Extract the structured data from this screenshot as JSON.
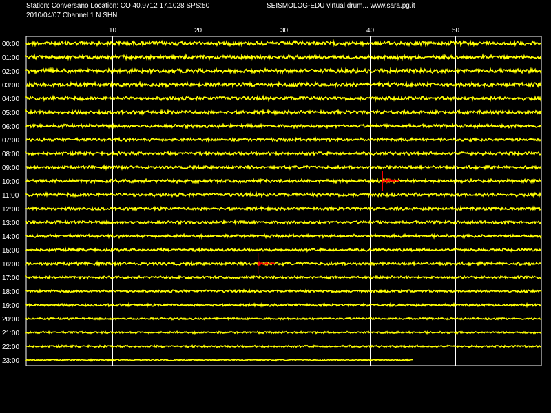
{
  "header": {
    "station_line": "Station: Conversano Location: CO 40.9712 17.1028 SPS:50",
    "date_line": "2010/04/07  Channel 1 N SHN",
    "title": "SEISMOLOG-EDU virtual drum... www.sara.pg.it"
  },
  "colors": {
    "background": "#000000",
    "trace": "#ffff00",
    "grid": "#ffffff",
    "event_marker": "#ff0000"
  },
  "chart_data": {
    "type": "line",
    "title": "",
    "xlabel": "",
    "ylabel": "",
    "x_unit": "minutes",
    "xlim": [
      0,
      60
    ],
    "x_ticks": [
      "10",
      "20",
      "30",
      "40",
      "50"
    ],
    "x_tick_values": [
      10,
      20,
      30,
      40,
      50
    ],
    "hours": [
      "00:00",
      "01:00",
      "02:00",
      "03:00",
      "04:00",
      "05:00",
      "06:00",
      "07:00",
      "08:00",
      "09:00",
      "10:00",
      "11:00",
      "12:00",
      "13:00",
      "14:00",
      "15:00",
      "16:00",
      "17:00",
      "18:00",
      "19:00",
      "20:00",
      "21:00",
      "22:00",
      "23:00"
    ],
    "noise_level": [
      2.2,
      2.0,
      2.2,
      2.2,
      2.0,
      1.8,
      1.8,
      1.6,
      1.6,
      1.6,
      1.8,
      1.8,
      1.6,
      1.6,
      1.6,
      1.4,
      1.6,
      1.3,
      1.3,
      1.3,
      1.0,
      1.0,
      1.0,
      0.8
    ],
    "last_minute": 45,
    "events": [
      {
        "hour": "10:00",
        "minute": 41.5,
        "duration_min": 2.0
      },
      {
        "hour": "16:00",
        "minute": 27.0,
        "duration_min": 2.0
      }
    ],
    "grid": true
  }
}
